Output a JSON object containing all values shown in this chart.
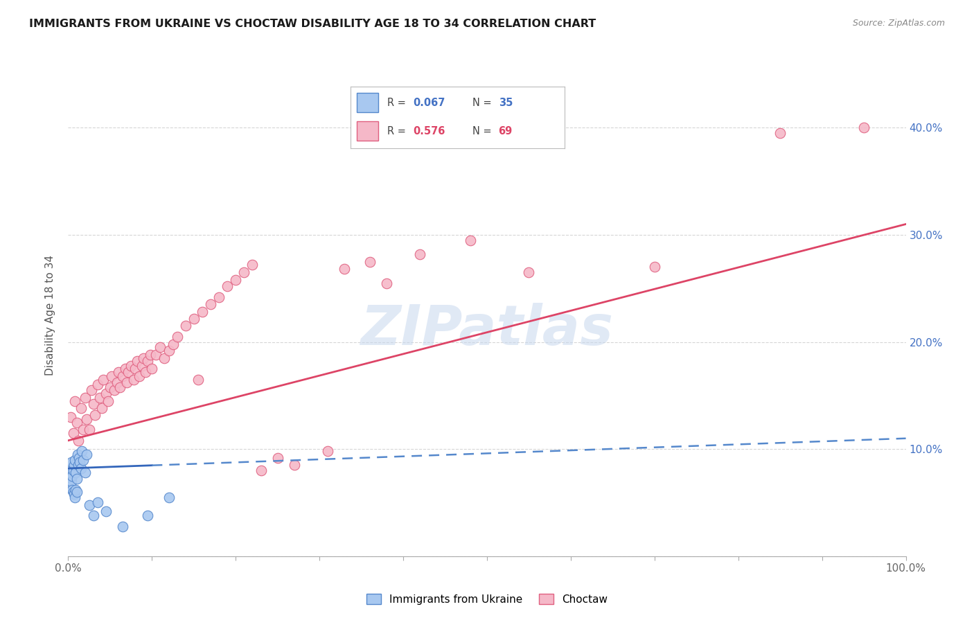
{
  "title": "IMMIGRANTS FROM UKRAINE VS CHOCTAW DISABILITY AGE 18 TO 34 CORRELATION CHART",
  "source": "Source: ZipAtlas.com",
  "ylabel": "Disability Age 18 to 34",
  "xlim": [
    0,
    1.0
  ],
  "ylim": [
    0,
    0.45
  ],
  "x_ticks": [
    0.0,
    0.1,
    0.2,
    0.3,
    0.4,
    0.5,
    0.6,
    0.7,
    0.8,
    0.9,
    1.0
  ],
  "x_tick_labels": [
    "0.0%",
    "",
    "",
    "",
    "",
    "",
    "",
    "",
    "",
    "",
    "100.0%"
  ],
  "y_ticks": [
    0.0,
    0.1,
    0.2,
    0.3,
    0.4
  ],
  "y_tick_labels": [
    "",
    "10.0%",
    "20.0%",
    "30.0%",
    "40.0%"
  ],
  "blue_color": "#a8c8f0",
  "pink_color": "#f5b8c8",
  "blue_edge_color": "#5588cc",
  "pink_edge_color": "#e06080",
  "blue_line_color": "#3366bb",
  "pink_line_color": "#dd4466",
  "watermark_color": "#c8d8ee",
  "blue_scatter_x": [
    0.001,
    0.002,
    0.002,
    0.003,
    0.003,
    0.004,
    0.004,
    0.005,
    0.005,
    0.006,
    0.006,
    0.007,
    0.007,
    0.008,
    0.008,
    0.009,
    0.009,
    0.01,
    0.01,
    0.011,
    0.012,
    0.013,
    0.014,
    0.015,
    0.016,
    0.018,
    0.02,
    0.022,
    0.025,
    0.03,
    0.035,
    0.045,
    0.065,
    0.095,
    0.12
  ],
  "blue_scatter_y": [
    0.072,
    0.068,
    0.078,
    0.065,
    0.082,
    0.07,
    0.088,
    0.062,
    0.075,
    0.06,
    0.08,
    0.058,
    0.085,
    0.055,
    0.09,
    0.062,
    0.078,
    0.06,
    0.072,
    0.095,
    0.085,
    0.092,
    0.088,
    0.082,
    0.098,
    0.09,
    0.078,
    0.095,
    0.048,
    0.038,
    0.05,
    0.042,
    0.028,
    0.038,
    0.055
  ],
  "pink_scatter_x": [
    0.003,
    0.006,
    0.008,
    0.01,
    0.012,
    0.015,
    0.018,
    0.02,
    0.022,
    0.025,
    0.028,
    0.03,
    0.032,
    0.035,
    0.038,
    0.04,
    0.042,
    0.045,
    0.048,
    0.05,
    0.052,
    0.055,
    0.058,
    0.06,
    0.062,
    0.065,
    0.068,
    0.07,
    0.072,
    0.075,
    0.078,
    0.08,
    0.082,
    0.085,
    0.088,
    0.09,
    0.092,
    0.095,
    0.098,
    0.1,
    0.105,
    0.11,
    0.115,
    0.12,
    0.125,
    0.13,
    0.14,
    0.15,
    0.155,
    0.16,
    0.17,
    0.18,
    0.19,
    0.2,
    0.21,
    0.22,
    0.23,
    0.25,
    0.27,
    0.31,
    0.33,
    0.36,
    0.38,
    0.42,
    0.48,
    0.55,
    0.7,
    0.85,
    0.95
  ],
  "pink_scatter_y": [
    0.13,
    0.115,
    0.145,
    0.125,
    0.108,
    0.138,
    0.118,
    0.148,
    0.128,
    0.118,
    0.155,
    0.142,
    0.132,
    0.16,
    0.148,
    0.138,
    0.165,
    0.152,
    0.145,
    0.158,
    0.168,
    0.155,
    0.162,
    0.172,
    0.158,
    0.168,
    0.175,
    0.162,
    0.172,
    0.178,
    0.165,
    0.175,
    0.182,
    0.168,
    0.178,
    0.185,
    0.172,
    0.182,
    0.188,
    0.175,
    0.188,
    0.195,
    0.185,
    0.192,
    0.198,
    0.205,
    0.215,
    0.222,
    0.165,
    0.228,
    0.235,
    0.242,
    0.252,
    0.258,
    0.265,
    0.272,
    0.08,
    0.092,
    0.085,
    0.098,
    0.268,
    0.275,
    0.255,
    0.282,
    0.295,
    0.265,
    0.27,
    0.395,
    0.4
  ],
  "blue_line_x0": 0.0,
  "blue_line_x_solid_end": 0.1,
  "blue_line_x1": 1.0,
  "blue_line_y0": 0.082,
  "blue_line_y_slope": 0.028,
  "pink_line_x0": 0.0,
  "pink_line_x1": 1.0,
  "pink_line_y0": 0.108,
  "pink_line_y1": 0.31
}
